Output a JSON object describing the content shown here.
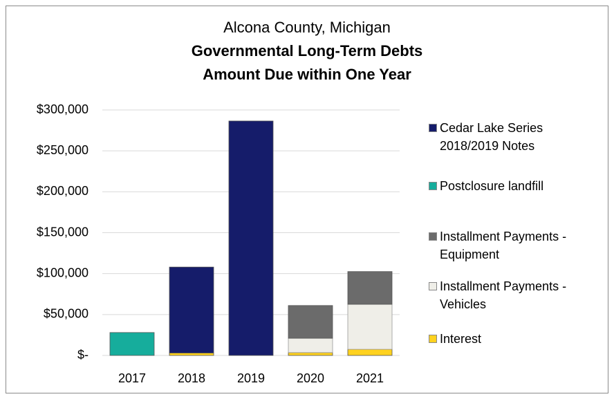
{
  "chart_data": {
    "type": "stacked_bar",
    "supertitle": "Alcona County, Michigan",
    "title": "Governmental Long-Term Debts",
    "subtitle": "Amount Due within One Year",
    "categories": [
      "2017",
      "2018",
      "2019",
      "2020",
      "2021"
    ],
    "series": [
      {
        "name": "Interest",
        "color": "#ffd21f",
        "values": [
          0,
          3000,
          0,
          3500,
          7500
        ]
      },
      {
        "name": "Installment Payments - Vehicles",
        "color": "#efeee8",
        "values": [
          0,
          0,
          0,
          17500,
          55000
        ]
      },
      {
        "name": "Installment Payments - Equipment",
        "color": "#6b6b6b",
        "values": [
          0,
          0,
          0,
          40000,
          40000
        ]
      },
      {
        "name": "Postclosure landfill",
        "color": "#16ad9c",
        "values": [
          28000,
          0,
          0,
          0,
          0
        ]
      },
      {
        "name": "Cedar Lake Series 2018/2019 Notes",
        "color": "#151c6a",
        "values": [
          0,
          105000,
          286500,
          0,
          0
        ]
      }
    ],
    "ylim": [
      0,
      300000
    ],
    "yticks": [
      {
        "value": 0,
        "label": "$-"
      },
      {
        "value": 50000,
        "label": "$50,000"
      },
      {
        "value": 100000,
        "label": "$100,000"
      },
      {
        "value": 150000,
        "label": "$150,000"
      },
      {
        "value": 200000,
        "label": "$200,000"
      },
      {
        "value": 250000,
        "label": "$250,000"
      },
      {
        "value": 300000,
        "label": "$300,000"
      }
    ],
    "grid": true,
    "legend": "right"
  }
}
